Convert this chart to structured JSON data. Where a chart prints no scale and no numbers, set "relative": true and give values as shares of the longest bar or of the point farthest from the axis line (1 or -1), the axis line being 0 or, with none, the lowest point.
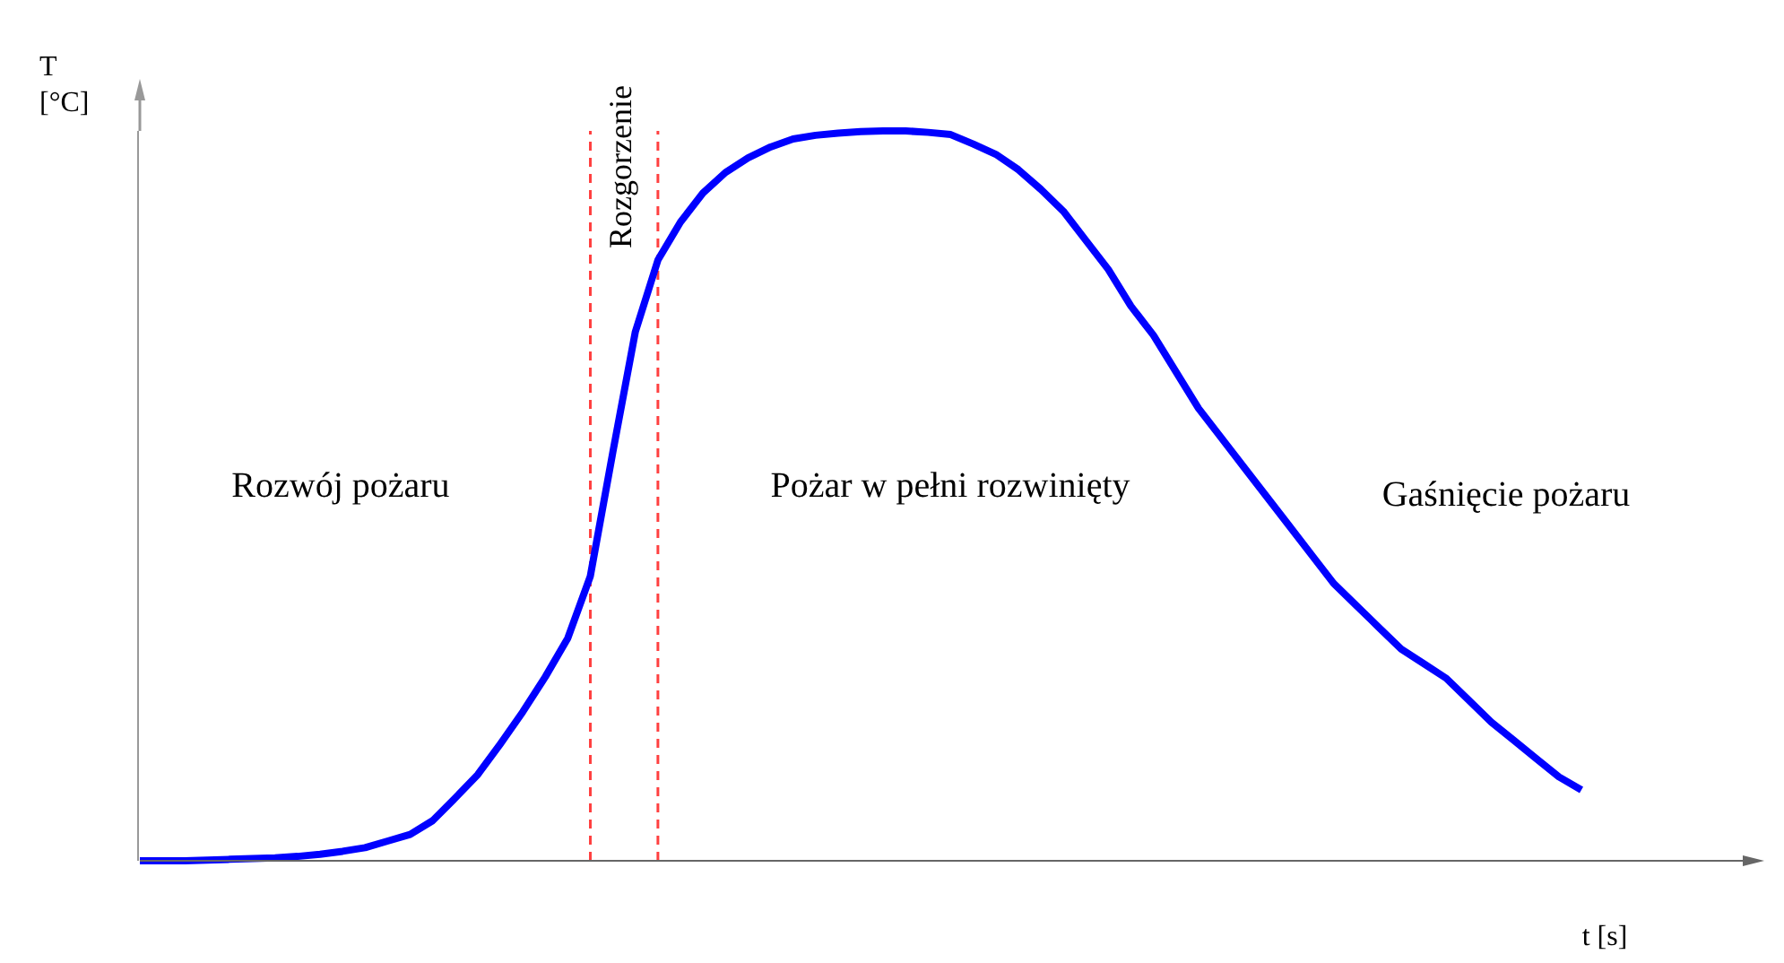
{
  "chart_data": {
    "type": "line",
    "relative": true,
    "xlabel": "t [s]",
    "ylabel": "T [°C]",
    "categories": [
      null,
      null,
      null,
      null,
      null,
      null,
      null,
      null,
      null,
      null,
      null,
      null,
      null,
      null,
      null,
      null,
      null,
      null,
      null,
      null,
      null,
      null,
      null,
      null,
      null,
      null,
      null,
      null,
      null,
      null,
      null,
      null,
      null,
      null,
      null,
      null,
      null,
      null,
      null,
      null,
      null,
      null,
      null,
      null,
      null,
      null,
      null,
      null,
      null,
      null,
      null,
      null,
      null,
      null,
      null,
      null,
      null,
      null,
      null,
      null,
      null,
      null,
      null,
      null,
      null
    ],
    "grid": false,
    "legend": false,
    "marker": "none",
    "line_style": "solid",
    "series": [
      {
        "color": "#0000ff",
        "values": [
          0,
          0,
          0,
          0.001,
          0.002,
          0.003,
          0.004,
          0.006,
          0.009,
          0.013,
          0.018,
          0.027,
          0.036,
          0.055,
          0.086,
          0.118,
          0.16,
          0.204,
          0.252,
          0.305,
          0.39,
          0.56,
          0.725,
          0.823,
          0.875,
          0.915,
          0.943,
          0.963,
          0.978,
          0.989,
          0.994,
          0.997,
          0.999,
          1,
          1,
          0.998,
          0.995,
          0.982,
          0.968,
          0.947,
          0.92,
          0.89,
          0.85,
          0.81,
          0.76,
          0.72,
          0.67,
          0.62,
          0.58,
          0.54,
          0.5,
          0.46,
          0.42,
          0.38,
          0.35,
          0.32,
          0.29,
          0.27,
          0.25,
          0.22,
          0.19,
          0.165,
          0.14,
          0.115,
          0.097
        ]
      }
    ],
    "annotations": [
      "Rozwój pożaru",
      "Pożar w pełni rozwinięty",
      "Gaśnięcie pożaru",
      "Rozgorzenie"
    ]
  }
}
